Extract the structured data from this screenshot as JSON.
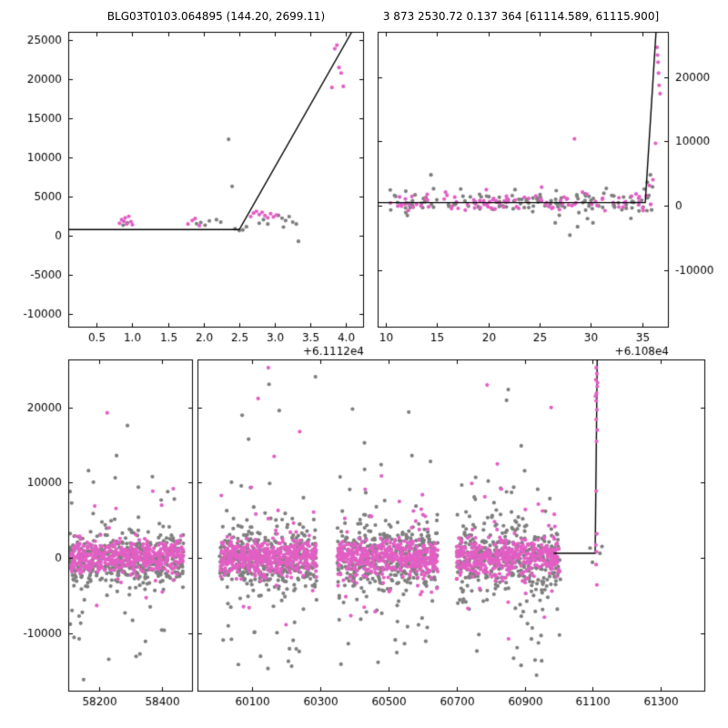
{
  "figure": {
    "titles": {
      "left": "BLG03T0103.064895 (144.20, 2699.11)",
      "right": "3 873 2530.72 0.137 364 [61114.589, 61115.900]"
    }
  },
  "colors": {
    "magenta": "#e25fc4",
    "gray": "#7f7f7f",
    "model_line": "#000000",
    "axis": "#000000",
    "background": "#ffffff"
  },
  "chart_data": [
    {
      "id": "top-left-zoom",
      "type": "scatter",
      "x_axis": {
        "range": [
          0.1,
          4.25
        ],
        "ticks": [
          0.5,
          1.0,
          1.5,
          2.0,
          2.5,
          3.0,
          3.5,
          4.0
        ],
        "tick_labels": [
          "0.5",
          "1.0",
          "1.5",
          "2.0",
          "2.5",
          "3.0",
          "3.5",
          "4.0"
        ],
        "offset_label": "+6.1112e4"
      },
      "y_axis": {
        "range": [
          -11700,
          26000
        ],
        "ticks": [
          -10000,
          -5000,
          0,
          5000,
          10000,
          15000,
          20000,
          25000
        ],
        "tick_labels": [
          "-10000",
          "-5000",
          "0",
          "5000",
          "10000",
          "15000",
          "20000",
          "25000"
        ],
        "side": "left"
      },
      "model_line": [
        [
          0.1,
          800
        ],
        [
          2.5,
          800
        ],
        [
          4.08,
          26000
        ]
      ],
      "series": [
        {
          "name": "reference-points",
          "color": "gray",
          "points": [
            [
              0.87,
              1350
            ],
            [
              0.93,
              1650
            ],
            [
              1.9,
              1550
            ],
            [
              1.96,
              1700
            ],
            [
              2.02,
              1350
            ],
            [
              2.08,
              1900
            ],
            [
              2.18,
              2050
            ],
            [
              2.24,
              1750
            ],
            [
              2.35,
              12300
            ],
            [
              2.4,
              6300
            ],
            [
              2.44,
              900
            ],
            [
              2.5,
              680
            ],
            [
              2.55,
              750
            ],
            [
              2.6,
              1150
            ],
            [
              2.78,
              1600
            ],
            [
              2.84,
              2050
            ],
            [
              2.9,
              1500
            ],
            [
              3.05,
              2600
            ],
            [
              3.1,
              2250
            ],
            [
              3.12,
              1120
            ],
            [
              3.15,
              1950
            ],
            [
              3.2,
              2450
            ],
            [
              3.25,
              1750
            ],
            [
              3.3,
              1500
            ],
            [
              3.33,
              -700
            ]
          ]
        },
        {
          "name": "event-points",
          "color": "magenta",
          "points": [
            [
              0.82,
              1600
            ],
            [
              0.85,
              2050
            ],
            [
              0.88,
              1850
            ],
            [
              0.9,
              2300
            ],
            [
              0.92,
              1500
            ],
            [
              0.95,
              2480
            ],
            [
              0.98,
              1800
            ],
            [
              1.0,
              1420
            ],
            [
              1.78,
              1500
            ],
            [
              1.84,
              1950
            ],
            [
              1.88,
              2200
            ],
            [
              1.94,
              1300
            ],
            [
              2.66,
              2450
            ],
            [
              2.7,
              2900
            ],
            [
              2.74,
              3120
            ],
            [
              2.78,
              2700
            ],
            [
              2.82,
              3000
            ],
            [
              2.86,
              2580
            ],
            [
              2.9,
              2300
            ],
            [
              2.94,
              2820
            ],
            [
              2.98,
              2400
            ],
            [
              3.02,
              2650
            ],
            [
              3.8,
              18900
            ],
            [
              3.84,
              23850
            ],
            [
              3.87,
              24300
            ],
            [
              3.9,
              21450
            ],
            [
              3.93,
              20750
            ],
            [
              3.96,
              19050
            ]
          ]
        }
      ]
    },
    {
      "id": "top-right-zoom",
      "type": "scatter",
      "x_axis": {
        "range": [
          9.2,
          37.6
        ],
        "ticks": [
          10,
          15,
          20,
          25,
          30,
          35
        ],
        "tick_labels": [
          "10",
          "15",
          "20",
          "25",
          "30",
          "35"
        ],
        "offset_label": "+6.108e4"
      },
      "y_axis": {
        "range": [
          -18900,
          27000
        ],
        "ticks": [
          -10000,
          0,
          10000,
          20000
        ],
        "tick_labels": [
          "-10000",
          "0",
          "10000",
          "20000"
        ],
        "side": "right"
      },
      "model_line": [
        [
          9.2,
          500
        ],
        [
          35.3,
          500
        ],
        [
          36.35,
          27000
        ]
      ],
      "series": [
        {
          "name": "reference-points",
          "color": "gray",
          "clusters": [
            {
              "n": 130,
              "x_min": 10.3,
              "x_max": 36.1,
              "y_mean": 450,
              "y_sigma": 820,
              "seed": 11
            }
          ],
          "points": [
            [
              14.4,
              4800
            ],
            [
              27.95,
              -4550
            ],
            [
              28.7,
              -3250
            ],
            [
              30.2,
              -2650
            ],
            [
              33.9,
              -1950
            ],
            [
              35.2,
              2600
            ],
            [
              35.5,
              3650
            ],
            [
              35.8,
              4800
            ],
            [
              36.0,
              2950
            ],
            [
              12.1,
              -1500
            ],
            [
              17.3,
              2600
            ],
            [
              22.6,
              2500
            ],
            [
              31.5,
              2700
            ]
          ]
        },
        {
          "name": "event-points",
          "color": "magenta",
          "clusters": [
            {
              "n": 100,
              "x_min": 10.4,
              "x_max": 35.9,
              "y_mean": 600,
              "y_sigma": 640,
              "seed": 12
            }
          ],
          "points": [
            [
              28.4,
              10400
            ],
            [
              35.7,
              3150
            ],
            [
              36.05,
              4050
            ],
            [
              36.3,
              9700
            ],
            [
              25.2,
              2900
            ],
            [
              19.8,
              2500
            ],
            [
              36.45,
              24600
            ],
            [
              36.5,
              23400
            ],
            [
              36.55,
              22300
            ],
            [
              36.6,
              20600
            ],
            [
              36.65,
              18700
            ],
            [
              36.75,
              17400
            ]
          ]
        }
      ]
    },
    {
      "id": "bottom-season1",
      "type": "scatter",
      "x_axis": {
        "range": [
          58100,
          58500
        ],
        "ticks": [
          58200,
          58400
        ],
        "tick_labels": [
          "58200",
          "58400"
        ],
        "offset_label": ""
      },
      "y_axis": {
        "range": [
          -17800,
          26400
        ],
        "ticks": [
          -10000,
          0,
          10000,
          20000
        ],
        "tick_labels": [
          "-10000",
          "0",
          "10000",
          "20000"
        ],
        "side": "left"
      },
      "model_line": [],
      "series": [
        {
          "name": "reference-points",
          "color": "gray",
          "clusters": [
            {
              "n": 380,
              "x_min": 58105,
              "x_max": 58470,
              "y_mean": -100,
              "y_sigma": 1700,
              "seed": 21
            },
            {
              "n": 70,
              "x_min": 58105,
              "x_max": 58470,
              "y_mean": 0,
              "y_sigma": 5200,
              "seed": 22
            }
          ],
          "points": [
            [
              58290,
              17600
            ],
            [
              58255,
              13600
            ],
            [
              58165,
              11600
            ],
            [
              58370,
              10800
            ],
            [
              58330,
              -12800
            ],
            [
              58230,
              -13500
            ],
            [
              58400,
              -9600
            ],
            [
              58140,
              -8700
            ]
          ]
        },
        {
          "name": "event-points",
          "color": "magenta",
          "clusters": [
            {
              "n": 420,
              "x_min": 58105,
              "x_max": 58470,
              "y_mean": 50,
              "y_sigma": 1050,
              "seed": 23
            },
            {
              "n": 30,
              "x_min": 58105,
              "x_max": 58470,
              "y_mean": 0,
              "y_sigma": 3400,
              "seed": 24
            }
          ],
          "points": [
            [
              58225,
              19300
            ],
            [
              58437,
              9200
            ],
            [
              58185,
              6900
            ],
            [
              58350,
              -5300
            ]
          ]
        }
      ]
    },
    {
      "id": "bottom-seasons2-5",
      "type": "scatter",
      "x_axis": {
        "range": [
          59940,
          61430
        ],
        "ticks": [
          60100,
          60300,
          60500,
          60700,
          60900,
          61100,
          61300
        ],
        "tick_labels": [
          "60100",
          "60300",
          "60500",
          "60700",
          "60900",
          "61100",
          "61300"
        ],
        "offset_label": ""
      },
      "y_axis": {
        "range": [
          -17800,
          26400
        ],
        "ticks": [
          -10000,
          0,
          10000,
          20000
        ],
        "tick_labels": [
          "-10000",
          "0",
          "10000",
          "20000"
        ],
        "side": "none"
      },
      "model_line": [
        [
          60985,
          600
        ],
        [
          61107,
          600
        ],
        [
          61113,
          26400
        ]
      ],
      "series": [
        {
          "name": "reference-points",
          "color": "gray",
          "clusters": [
            {
              "n": 330,
              "x_min": 60005,
              "x_max": 60290,
              "y_mean": -100,
              "y_sigma": 2100,
              "seed": 31
            },
            {
              "n": 85,
              "x_min": 60005,
              "x_max": 60290,
              "y_mean": 0,
              "y_sigma": 6500,
              "seed": 32
            },
            {
              "n": 330,
              "x_min": 60350,
              "x_max": 60645,
              "y_mean": -100,
              "y_sigma": 2200,
              "seed": 41
            },
            {
              "n": 85,
              "x_min": 60350,
              "x_max": 60645,
              "y_mean": 0,
              "y_sigma": 6200,
              "seed": 42
            },
            {
              "n": 320,
              "x_min": 60700,
              "x_max": 61005,
              "y_mean": -100,
              "y_sigma": 2200,
              "seed": 51
            },
            {
              "n": 85,
              "x_min": 60700,
              "x_max": 61005,
              "y_mean": 0,
              "y_sigma": 6300,
              "seed": 52
            }
          ],
          "points": [
            [
              60150,
              23100
            ],
            [
              60180,
              19600
            ],
            [
              60060,
              -14200
            ],
            [
              60125,
              -13100
            ],
            [
              60210,
              -12100
            ],
            [
              60090,
              15800
            ],
            [
              60395,
              19800
            ],
            [
              60560,
              19400
            ],
            [
              60470,
              -13900
            ],
            [
              60525,
              -12600
            ],
            [
              60610,
              -11100
            ],
            [
              60430,
              15300
            ],
            [
              60852,
              22400
            ],
            [
              60890,
              14900
            ],
            [
              60950,
              -13700
            ],
            [
              60760,
              -12400
            ],
            [
              60920,
              -10800
            ],
            [
              61092,
              1300
            ],
            [
              61099,
              -600
            ],
            [
              61121,
              600
            ],
            [
              61127,
              1500
            ]
          ]
        },
        {
          "name": "event-points",
          "color": "magenta",
          "clusters": [
            {
              "n": 400,
              "x_min": 60005,
              "x_max": 60290,
              "y_mean": 0,
              "y_sigma": 1150,
              "seed": 33
            },
            {
              "n": 45,
              "x_min": 60005,
              "x_max": 60290,
              "y_mean": 0,
              "y_sigma": 4200,
              "seed": 34
            },
            {
              "n": 400,
              "x_min": 60350,
              "x_max": 60645,
              "y_mean": 0,
              "y_sigma": 1150,
              "seed": 43
            },
            {
              "n": 45,
              "x_min": 60350,
              "x_max": 60645,
              "y_mean": 0,
              "y_sigma": 3900,
              "seed": 44
            },
            {
              "n": 380,
              "x_min": 60700,
              "x_max": 61005,
              "y_mean": 0,
              "y_sigma": 1150,
              "seed": 53
            },
            {
              "n": 45,
              "x_min": 60700,
              "x_max": 61005,
              "y_mean": 0,
              "y_sigma": 4300,
              "seed": 54
            }
          ],
          "points": [
            [
              60148,
              25300
            ],
            [
              60118,
              21200
            ],
            [
              60240,
              16800
            ],
            [
              60165,
              13500
            ],
            [
              60200,
              -8900
            ],
            [
              60075,
              -6500
            ],
            [
              60480,
              10900
            ],
            [
              60432,
              9100
            ],
            [
              60390,
              -7700
            ],
            [
              60600,
              8400
            ],
            [
              60790,
              23000
            ],
            [
              60978,
              20000
            ],
            [
              60745,
              9900
            ],
            [
              60958,
              -7900
            ],
            [
              60820,
              12500
            ]
          ]
        },
        {
          "name": "event-peak-points",
          "color": "magenta",
          "above_line": true,
          "points": [
            [
              61110,
              25300
            ],
            [
              61112,
              24500
            ],
            [
              61109,
              23700
            ],
            [
              61113,
              22800
            ],
            [
              61111,
              21900
            ],
            [
              61110,
              20900
            ],
            [
              61112,
              19700
            ],
            [
              61110,
              18400
            ],
            [
              61113,
              17000
            ],
            [
              61111,
              15500
            ],
            [
              61114,
              23300
            ],
            [
              61108,
              21500
            ],
            [
              61110,
              8900
            ],
            [
              61112,
              3200
            ],
            [
              61109,
              1700
            ],
            [
              61111,
              800
            ],
            [
              61110,
              -900
            ],
            [
              61112,
              -3600
            ]
          ]
        }
      ]
    }
  ]
}
